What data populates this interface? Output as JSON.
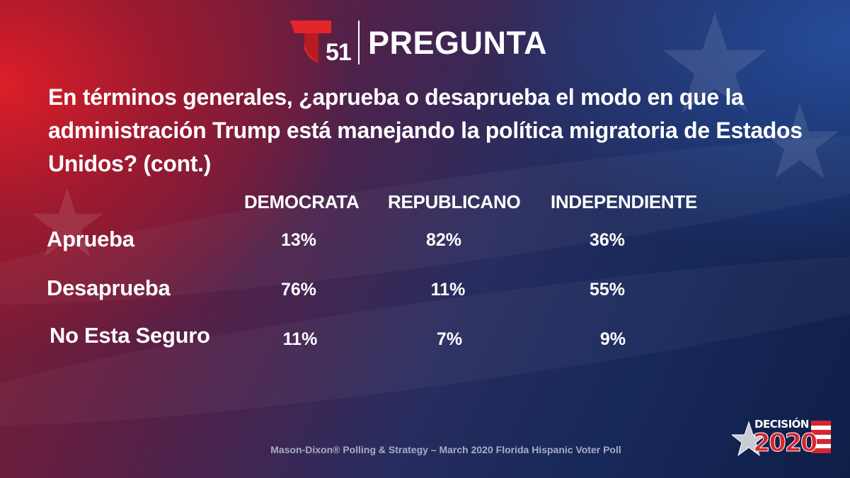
{
  "header": {
    "channel_number": "51",
    "title": "PREGUNTA"
  },
  "question": "En términos generales, ¿aprueba o desaprueba el modo en que la administración Trump está manejando la política migratoria de Estados Unidos? (cont.)",
  "table": {
    "columns": [
      "DEMOCRATA",
      "REPUBLICANO",
      "INDEPENDIENTE"
    ],
    "rows": [
      {
        "label": "Aprueba",
        "values": [
          "13%",
          "82%",
          "36%"
        ]
      },
      {
        "label": "Desaprueba",
        "values": [
          "76%",
          "11%",
          "55%"
        ]
      },
      {
        "label": "No Esta Seguro",
        "values": [
          "11%",
          "7%",
          "9%"
        ]
      }
    ]
  },
  "source": "Mason-Dixon® Polling & Strategy – March 2020 Florida Hispanic Voter Poll",
  "branding": {
    "decision_word": "DECISIÓN",
    "decision_year": "2020"
  },
  "colors": {
    "telemundo_red": "#e4262b",
    "decision_red": "#d7262e",
    "text": "#ffffff"
  }
}
